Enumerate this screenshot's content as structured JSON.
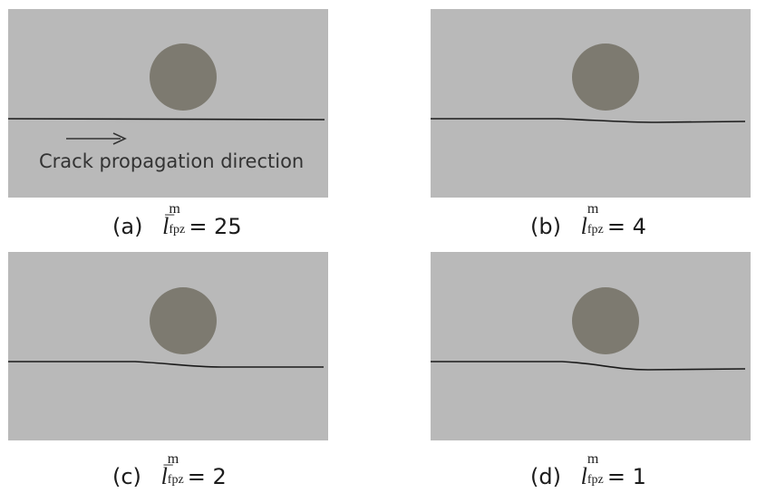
{
  "panels": [
    {
      "id": "a",
      "label": "(a)",
      "symbol": "l",
      "bar": "¯",
      "sup": "m",
      "sub": "fpz",
      "value": "= 25"
    },
    {
      "id": "b",
      "label": "(b)",
      "symbol": "l",
      "bar": "",
      "sup": "m",
      "sub": "fpz",
      "value": "= 4"
    },
    {
      "id": "c",
      "label": "(c)",
      "symbol": "l",
      "bar": "¯",
      "sup": "m",
      "sub": "fpz",
      "value": "= 2"
    },
    {
      "id": "d",
      "label": "(d)",
      "symbol": "l",
      "bar": "",
      "sup": "m",
      "sub": "fpz",
      "value": "= 1"
    }
  ],
  "annotation": "Crack propagation direction",
  "colors": {
    "plate": "#b9b9b9",
    "inclusion": "#7d7a70",
    "crack": "#1a1a1a"
  }
}
